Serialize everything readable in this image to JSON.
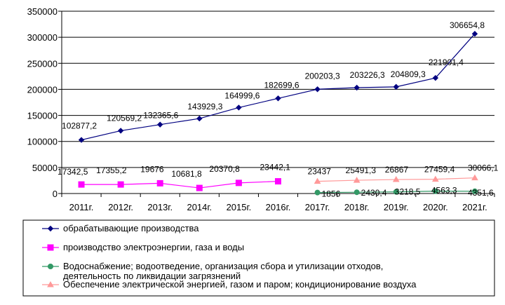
{
  "chart_data": {
    "type": "line",
    "categories": [
      "2011г.",
      "2012г.",
      "2013г.",
      "2014г.",
      "2015г.",
      "2016г.",
      "2017г.",
      "2018г.",
      "2019г.",
      "2020г.",
      "2021г."
    ],
    "y_ticks": [
      "0",
      "50000",
      "100000",
      "150000",
      "200000",
      "250000",
      "300000",
      "350000"
    ],
    "ylim": [
      0,
      350000
    ],
    "grid": "horizontal",
    "legend_placement": "bottom",
    "series": [
      {
        "name": "обрабатывающие производства",
        "color": "#000080",
        "marker": "diamond",
        "values": [
          102877.2,
          120569.2,
          132365.6,
          143929.3,
          164999.6,
          182699.6,
          200203.3,
          203226.3,
          204809.3,
          221901.4,
          306654.8
        ],
        "labels": [
          "102877,2",
          "120569,2",
          "132365,6",
          "143929,3",
          "164999,6",
          "182699,6",
          "200203,3",
          "203226,3",
          "204809,3",
          "221901,4",
          "306654,8"
        ]
      },
      {
        "name": "производство электроэнергии, газа и воды",
        "color": "#ff00ff",
        "marker": "square",
        "values": [
          17342.5,
          17355.2,
          19676,
          10681.8,
          20370.8,
          23442.1,
          null,
          null,
          null,
          null,
          null
        ],
        "labels": [
          "17342,5",
          "17355,2",
          "19676",
          "10681,8",
          "20370,8",
          "23442,1",
          "",
          "",
          "",
          "",
          ""
        ]
      },
      {
        "name": "Водоснабжение; водоотведение, организация сбора и утилизации отходов, деятельность по ликвидации загрязнений",
        "color": "#339966",
        "marker": "circle",
        "values": [
          null,
          null,
          null,
          null,
          null,
          null,
          1856,
          2430.4,
          3218.5,
          4563.3,
          4351.6
        ],
        "labels": [
          "",
          "",
          "",
          "",
          "",
          "",
          "1856",
          "2430,4",
          "3218,5",
          "4563,3",
          "4351,6"
        ]
      },
      {
        "name": "Обеспечение электрической энергией, газом и паром; кондиционирование воздуха",
        "color": "#ff9999",
        "marker": "triangle",
        "values": [
          null,
          null,
          null,
          null,
          null,
          null,
          23437,
          25491.3,
          26867,
          27459.4,
          30066.1
        ],
        "labels": [
          "",
          "",
          "",
          "",
          "",
          "",
          "23437",
          "25491,3",
          "26867",
          "27459,4",
          "30066,1"
        ]
      }
    ]
  }
}
